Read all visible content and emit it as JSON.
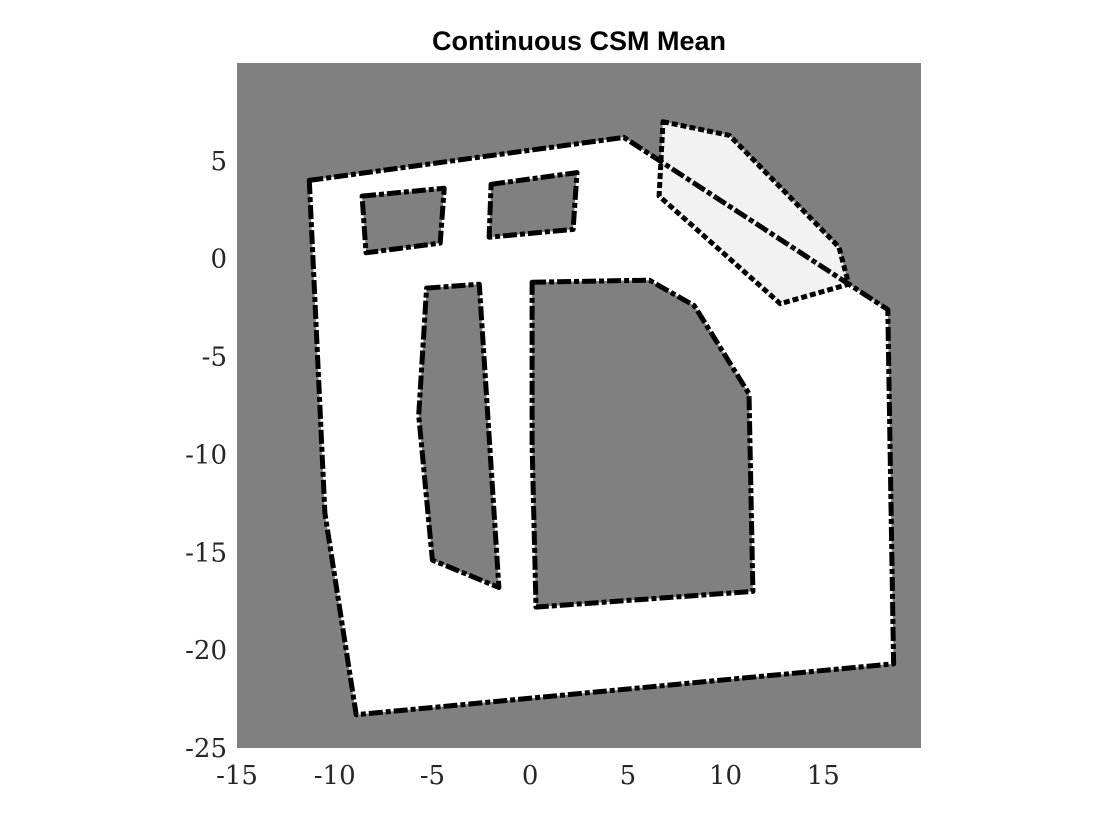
{
  "chart_data": {
    "type": "heatmap",
    "title": "Continuous CSM Mean",
    "xlabel": "",
    "ylabel": "",
    "xlim": [
      -15,
      20
    ],
    "ylim": [
      -25,
      10
    ],
    "xticks": [
      -15,
      -10,
      -5,
      0,
      5,
      10,
      15
    ],
    "yticks": [
      -25,
      -20,
      -15,
      -10,
      -5,
      0,
      5
    ],
    "xtick_labels": [
      "-15",
      "-10",
      "-5",
      "0",
      "5",
      "10",
      "15"
    ],
    "ytick_labels": [
      "-25",
      "-20",
      "-15",
      "-10",
      "-5",
      "0",
      "5"
    ],
    "grid": false,
    "colormap": "gray",
    "value_legend": {
      "unknown": "#808080",
      "free": "#ffffff",
      "occupied": "#000000"
    },
    "map_regions": {
      "free_outer": [
        [
          -11.3,
          4.0
        ],
        [
          4.8,
          6.2
        ],
        [
          18.3,
          -2.6
        ],
        [
          18.6,
          -20.7
        ],
        [
          -8.9,
          -23.3
        ],
        [
          -10.5,
          -13.0
        ]
      ],
      "free_ne_patch": [
        [
          6.8,
          7.0
        ],
        [
          10.2,
          6.3
        ],
        [
          15.8,
          0.6
        ],
        [
          16.3,
          -1.3
        ],
        [
          12.8,
          -2.3
        ],
        [
          6.6,
          3.2
        ]
      ],
      "unknown_inner_left": [
        [
          -5.3,
          -1.5
        ],
        [
          -2.6,
          -1.3
        ],
        [
          -1.6,
          -16.8
        ],
        [
          -5.0,
          -15.4
        ],
        [
          -5.7,
          -8.0
        ]
      ],
      "unknown_inner_center": [
        [
          0.1,
          -1.2
        ],
        [
          6.1,
          -1.1
        ],
        [
          8.4,
          -2.4
        ],
        [
          11.2,
          -6.9
        ],
        [
          11.4,
          -17.0
        ],
        [
          0.3,
          -17.8
        ],
        [
          0.1,
          -9.5
        ]
      ],
      "unknown_upper_left_rooms": [
        [
          -8.6,
          3.2
        ],
        [
          -4.4,
          3.6
        ],
        [
          -4.6,
          0.8
        ],
        [
          -8.4,
          0.3
        ]
      ],
      "unknown_upper_mid_rooms": [
        [
          -2.0,
          3.8
        ],
        [
          2.4,
          4.4
        ],
        [
          2.2,
          1.5
        ],
        [
          -2.1,
          1.1
        ]
      ]
    }
  }
}
